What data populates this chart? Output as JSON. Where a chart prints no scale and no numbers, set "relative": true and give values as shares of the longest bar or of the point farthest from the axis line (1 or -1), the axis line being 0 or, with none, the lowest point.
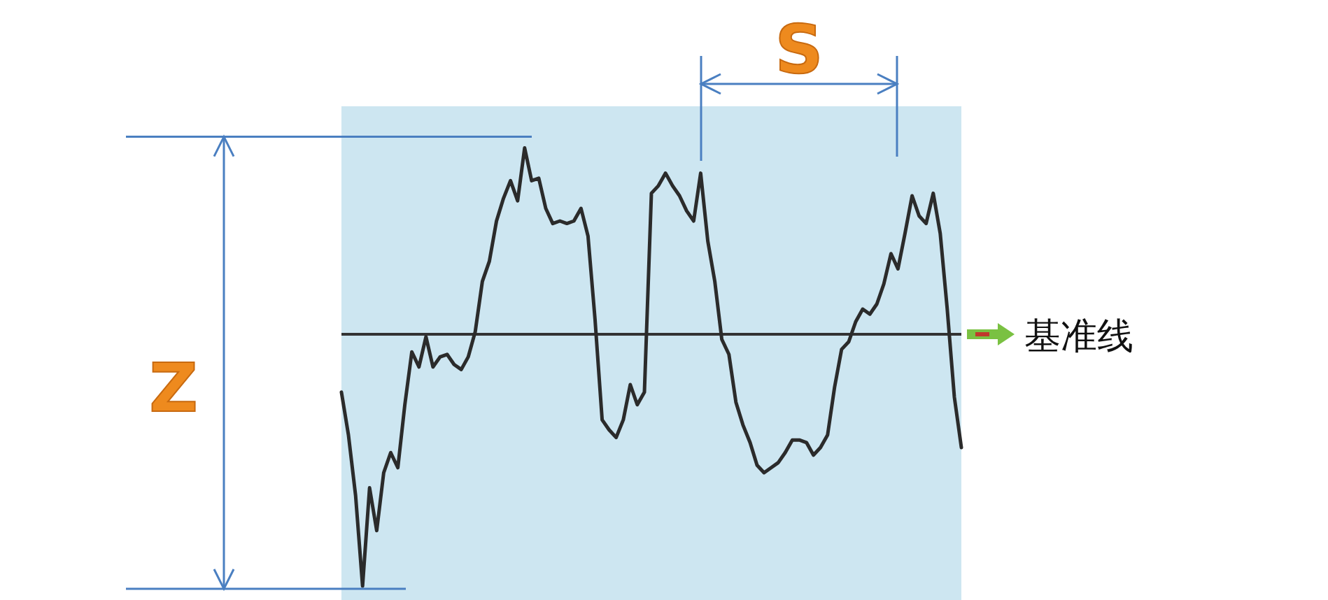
{
  "chart_data": {
    "type": "line",
    "relative": true,
    "categories": [
      null,
      null,
      null,
      null,
      null,
      null,
      null,
      null,
      null,
      null,
      null,
      null,
      null,
      null,
      null,
      null,
      null,
      null,
      null,
      null,
      null,
      null,
      null,
      null,
      null,
      null,
      null,
      null,
      null,
      null,
      null,
      null,
      null,
      null,
      null,
      null,
      null,
      null,
      null,
      null,
      null,
      null,
      null,
      null,
      null,
      null,
      null,
      null,
      null,
      null,
      null,
      null,
      null,
      null,
      null,
      null,
      null,
      null,
      null,
      null,
      null,
      null,
      null,
      null,
      null,
      null,
      null,
      null,
      null,
      null,
      null,
      null,
      null,
      null,
      null,
      null,
      null,
      null,
      null,
      null,
      null,
      null,
      null,
      null,
      null,
      null,
      null,
      null,
      null
    ],
    "values": [
      -0.23,
      -0.4,
      -0.64,
      -1,
      -0.61,
      -0.78,
      -0.55,
      -0.47,
      -0.53,
      -0.28,
      -0.07,
      -0.13,
      -0.01,
      -0.13,
      -0.09,
      -0.08,
      -0.12,
      -0.14,
      -0.09,
      0.01,
      0.21,
      0.29,
      0.45,
      0.54,
      0.61,
      0.53,
      0.74,
      0.61,
      0.62,
      0.5,
      0.44,
      0.45,
      0.44,
      0.45,
      0.5,
      0.39,
      0.06,
      -0.34,
      -0.38,
      -0.41,
      -0.34,
      -0.2,
      -0.28,
      -0.23,
      0.56,
      0.59,
      0.64,
      0.59,
      0.55,
      0.49,
      0.45,
      0.64,
      0.37,
      0.21,
      -0.02,
      -0.08,
      -0.27,
      -0.36,
      -0.43,
      -0.52,
      -0.55,
      -0.53,
      -0.51,
      -0.47,
      -0.42,
      -0.42,
      -0.43,
      -0.48,
      -0.45,
      -0.4,
      -0.21,
      -0.06,
      -0.03,
      0.05,
      0.1,
      0.08,
      0.12,
      0.2,
      0.32,
      0.26,
      0.4,
      0.55,
      0.47,
      0.44,
      0.56,
      0.4,
      0.1,
      -0.25,
      -0.45
    ],
    "color": "#2b2b2b",
    "ref_lines": [
      {
        "axis": "y",
        "value": 0,
        "label": "基准线",
        "color": "#333333"
      }
    ],
    "annotations": [
      "Z",
      "S"
    ]
  }
}
